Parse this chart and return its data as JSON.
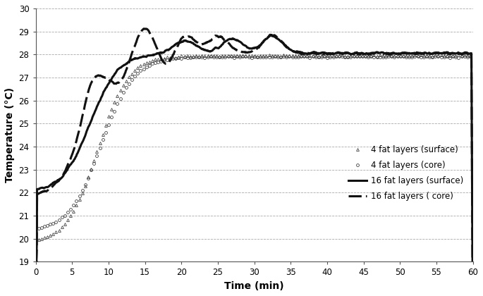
{
  "xlabel": "Time (min)",
  "ylabel": "Temperature (°C)",
  "xlim": [
    0,
    60
  ],
  "ylim": [
    19,
    30
  ],
  "yticks": [
    19,
    20,
    21,
    22,
    23,
    24,
    25,
    26,
    27,
    28,
    29,
    30
  ],
  "xticks": [
    0,
    5,
    10,
    15,
    20,
    25,
    30,
    35,
    40,
    45,
    50,
    55,
    60
  ],
  "grid_color": "#aaaaaa",
  "bg_color": "#ffffff",
  "legend_labels": [
    "4 fat layers (surface)",
    "4 fat layers (core)",
    "16 fat layers (surface)",
    "16 fat layers ( core)"
  ]
}
